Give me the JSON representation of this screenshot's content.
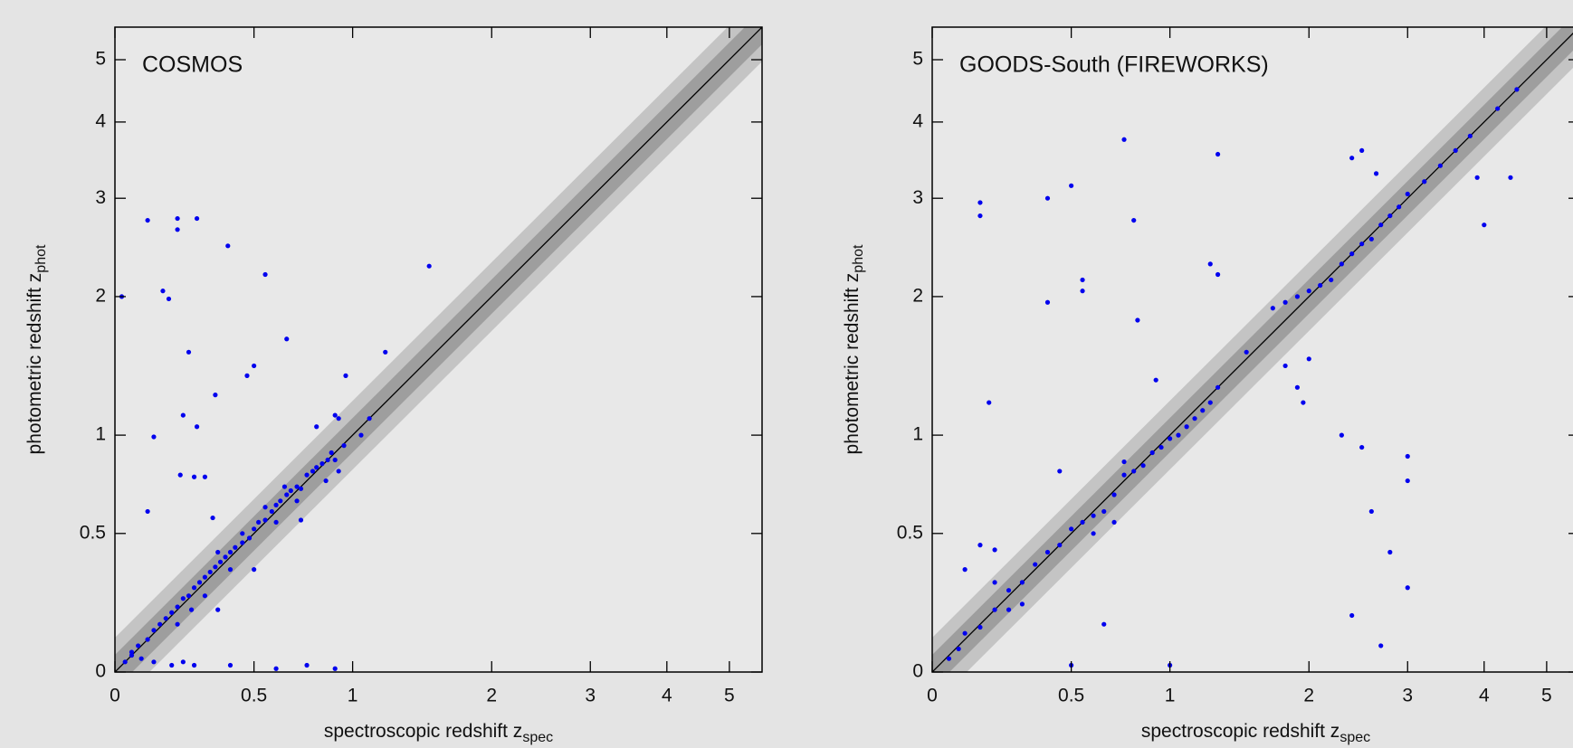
{
  "chart_data": [
    {
      "type": "scatter",
      "title": "COSMOS",
      "x_label": "spectroscopic redshift z",
      "x_label_sub": "spec",
      "y_label": "photometric redshift z",
      "y_label_sub": "phot",
      "scale": "log1p",
      "color": "#0000ee",
      "xlim": [
        0,
        5.6
      ],
      "ylim": [
        0,
        5.6
      ],
      "xticks": [
        0,
        0.5,
        1,
        2,
        3,
        4,
        5
      ],
      "yticks": [
        0,
        0.5,
        1,
        2,
        3,
        4,
        5
      ],
      "x": [
        0.05,
        0.07,
        0.1,
        0.12,
        0.14,
        0.16,
        0.18,
        0.2,
        0.22,
        0.24,
        0.26,
        0.28,
        0.3,
        0.32,
        0.34,
        0.36,
        0.38,
        0.4,
        0.42,
        0.45,
        0.48,
        0.5,
        0.52,
        0.55,
        0.58,
        0.6,
        0.62,
        0.65,
        0.67,
        0.7,
        0.72,
        0.75,
        0.78,
        0.8,
        0.83,
        0.86,
        0.88,
        0.9,
        0.92,
        0.95,
        0.64,
        0.7,
        0.85,
        0.6,
        0.4,
        0.3,
        0.25,
        0.2,
        0.35,
        0.45,
        0.55,
        0.02,
        0.1,
        0.2,
        0.2,
        0.27,
        0.15,
        0.17,
        0.39,
        0.55,
        0.65,
        0.24,
        0.5,
        0.47,
        0.34,
        0.22,
        0.27,
        0.12,
        0.21,
        0.26,
        0.3,
        1.5,
        1.2,
        0.96,
        0.1,
        0.33,
        0.8,
        0.9,
        0.92,
        1.05,
        1.1,
        0.03,
        0.05,
        0.08,
        0.12,
        0.18,
        0.22,
        0.26,
        0.4,
        0.6,
        0.75,
        0.9,
        0.35,
        0.5,
        0.72
      ],
      "y": [
        0.06,
        0.08,
        0.1,
        0.13,
        0.15,
        0.17,
        0.19,
        0.21,
        0.24,
        0.25,
        0.28,
        0.3,
        0.32,
        0.34,
        0.36,
        0.38,
        0.4,
        0.42,
        0.44,
        0.46,
        0.48,
        0.52,
        0.55,
        0.56,
        0.6,
        0.63,
        0.65,
        0.68,
        0.7,
        0.72,
        0.71,
        0.78,
        0.8,
        0.82,
        0.84,
        0.86,
        0.9,
        0.86,
        0.8,
        0.94,
        0.72,
        0.65,
        0.75,
        0.55,
        0.35,
        0.25,
        0.2,
        0.15,
        0.42,
        0.5,
        0.62,
        2.0,
        2.75,
        2.77,
        2.65,
        2.77,
        2.05,
        1.98,
        2.48,
        2.2,
        1.65,
        1.55,
        1.45,
        1.38,
        1.25,
        1.12,
        1.05,
        0.99,
        0.78,
        0.77,
        0.77,
        2.28,
        1.55,
        1.38,
        0.6,
        0.57,
        1.05,
        1.12,
        1.1,
        1.0,
        1.1,
        0.03,
        0.05,
        0.04,
        0.03,
        0.02,
        0.03,
        0.02,
        0.02,
        0.01,
        0.02,
        0.01,
        0.2,
        0.35,
        0.56
      ]
    },
    {
      "type": "scatter",
      "title": "GOODS-South (FIREWORKS)",
      "x_label": "spectroscopic redshift z",
      "x_label_sub": "spec",
      "y_label": "photometric redshift z",
      "y_label_sub": "phot",
      "scale": "log1p",
      "color": "#0000ee",
      "xlim": [
        0,
        5.6
      ],
      "ylim": [
        0,
        5.6
      ],
      "xticks": [
        0,
        0.5,
        1,
        2,
        3,
        4,
        5
      ],
      "yticks": [
        0,
        0.5,
        1,
        2,
        3,
        4,
        5
      ],
      "x": [
        0.05,
        0.08,
        0.1,
        0.15,
        0.2,
        0.25,
        0.3,
        0.35,
        0.4,
        0.45,
        0.5,
        0.55,
        0.6,
        0.65,
        0.7,
        0.75,
        0.8,
        0.85,
        0.9,
        0.95,
        1.0,
        1.05,
        1.1,
        1.15,
        1.2,
        1.25,
        1.3,
        1.5,
        1.7,
        1.8,
        1.9,
        2.0,
        2.1,
        2.2,
        2.3,
        2.4,
        2.5,
        2.6,
        2.7,
        2.8,
        2.9,
        3.0,
        3.2,
        3.4,
        3.6,
        3.8,
        4.2,
        4.5,
        0.6,
        0.7,
        0.75,
        0.2,
        0.25,
        0.3,
        0.15,
        0.15,
        0.4,
        0.5,
        0.75,
        1.3,
        0.8,
        0.55,
        0.55,
        0.4,
        0.82,
        0.18,
        0.45,
        0.92,
        1.25,
        1.3,
        2.4,
        2.5,
        2.65,
        1.9,
        1.95,
        1.8,
        2.3,
        2.5,
        3.0,
        3.0,
        3.0,
        2.8,
        2.6,
        2.4,
        2.7,
        0.65,
        0.5,
        1.0,
        0.15,
        0.2,
        0.1,
        3.9,
        4.4,
        4.0,
        2.0
      ],
      "y": [
        0.04,
        0.07,
        0.12,
        0.14,
        0.2,
        0.27,
        0.3,
        0.37,
        0.42,
        0.45,
        0.52,
        0.55,
        0.58,
        0.6,
        0.68,
        0.78,
        0.8,
        0.83,
        0.9,
        0.93,
        0.98,
        1.0,
        1.05,
        1.1,
        1.15,
        1.2,
        1.3,
        1.55,
        1.9,
        1.95,
        2.0,
        2.05,
        2.1,
        2.15,
        2.3,
        2.4,
        2.5,
        2.55,
        2.7,
        2.8,
        2.9,
        3.05,
        3.2,
        3.4,
        3.6,
        3.8,
        4.2,
        4.5,
        0.5,
        0.55,
        0.85,
        0.3,
        0.2,
        0.22,
        2.95,
        2.8,
        3.0,
        3.15,
        3.75,
        3.55,
        2.75,
        2.15,
        2.05,
        1.95,
        1.8,
        1.2,
        0.8,
        1.35,
        2.3,
        2.2,
        3.5,
        3.6,
        3.3,
        1.3,
        1.2,
        1.45,
        1.0,
        0.93,
        0.88,
        0.75,
        0.28,
        0.42,
        0.6,
        0.18,
        0.08,
        0.15,
        0.02,
        0.02,
        0.45,
        0.43,
        0.35,
        3.25,
        3.25,
        2.7,
        1.5
      ]
    }
  ]
}
